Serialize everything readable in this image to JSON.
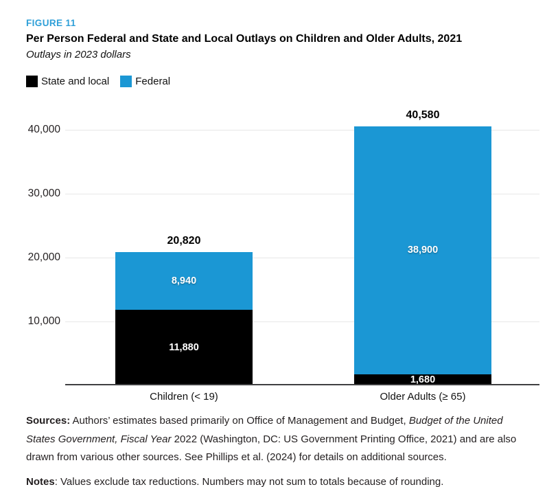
{
  "header": {
    "figure_label": "FIGURE 11",
    "title": "Per Person Federal and State and Local Outlays on Children and Older Adults, 2021",
    "subtitle": "Outlays in 2023 dollars"
  },
  "legend": {
    "items": [
      {
        "label": "State and local",
        "color": "#000000"
      },
      {
        "label": "Federal",
        "color": "#1b97d4"
      }
    ]
  },
  "chart_data": {
    "type": "bar",
    "stacked": true,
    "title": "Per Person Federal and State and Local Outlays on Children and Older Adults, 2021",
    "subtitle": "Outlays in 2023 dollars",
    "categories": [
      "Children (< 19)",
      "Older Adults (≥ 65)"
    ],
    "series": [
      {
        "name": "State and local",
        "color": "#000000",
        "values": [
          11880,
          1680
        ],
        "labels": [
          "11,880",
          "1,680"
        ]
      },
      {
        "name": "Federal",
        "color": "#1b97d4",
        "values": [
          8940,
          38900
        ],
        "labels": [
          "8,940",
          "38,900"
        ]
      }
    ],
    "totals": [
      20820,
      40580
    ],
    "total_labels": [
      "20,820",
      "40,580"
    ],
    "ylim": [
      0,
      43000
    ],
    "yticks": [
      10000,
      20000,
      30000,
      40000
    ],
    "ytick_labels": [
      "10,000",
      "20,000",
      "30,000",
      "40,000"
    ],
    "grid": true,
    "legend_position": "top-left"
  },
  "footer": {
    "sources_label": "Sources:",
    "sources_part1": " Authors’ estimates based primarily on Office of Management and Budget, ",
    "sources_italic": "Budget of the United States Government, Fiscal Year",
    "sources_part2": " 2022 (Washington, DC: US Government Printing Office, 2021) and are also drawn from various other sources. See Phillips et al. (2024) for details on additional sources.",
    "notes_label": "Notes",
    "notes_text": ": Values exclude tax reductions. Numbers may not sum to totals because of rounding."
  },
  "colors": {
    "accent_blue": "#1b97d4",
    "figure_label_blue": "#2e9fd8",
    "axis_line": "#3f3f41",
    "gridline": "#e7e7e7",
    "state_local_black": "#000000"
  }
}
